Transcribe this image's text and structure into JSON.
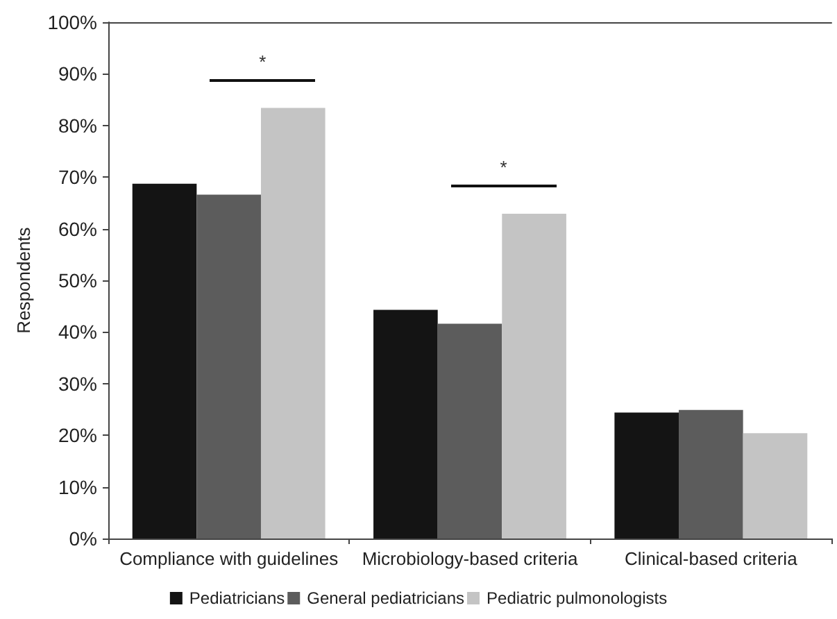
{
  "chart_data": {
    "type": "bar",
    "ylabel": "Respondents",
    "categories": [
      "Compliance with guidelines",
      "Microbiology-based criteria",
      "Clinical-based criteria"
    ],
    "series": [
      {
        "name": "Pediatricians",
        "color": "#141414",
        "values": [
          68.7,
          44.3,
          24.4
        ]
      },
      {
        "name": "General pediatricians",
        "color": "#5c5c5c",
        "values": [
          66.6,
          41.6,
          24.9
        ]
      },
      {
        "name": "Pediatric pulmonologists",
        "color": "#c4c4c4",
        "values": [
          83.4,
          62.9,
          20.4
        ]
      }
    ],
    "ylim": [
      0,
      100
    ],
    "yticks": [
      {
        "value": 0,
        "label": "0%"
      },
      {
        "value": 10,
        "label": "10%"
      },
      {
        "value": 20,
        "label": "20%"
      },
      {
        "value": 30,
        "label": "30%"
      },
      {
        "value": 40,
        "label": "40%"
      },
      {
        "value": 50,
        "label": "50%"
      },
      {
        "value": 60,
        "label": "60%"
      },
      {
        "value": 70,
        "label": "70%"
      },
      {
        "value": 80,
        "label": "80%"
      },
      {
        "value": 90,
        "label": "90%"
      },
      {
        "value": 100,
        "label": "100%"
      }
    ],
    "annotations": [
      "*",
      "*"
    ],
    "grid": false,
    "legend": "bottom"
  }
}
